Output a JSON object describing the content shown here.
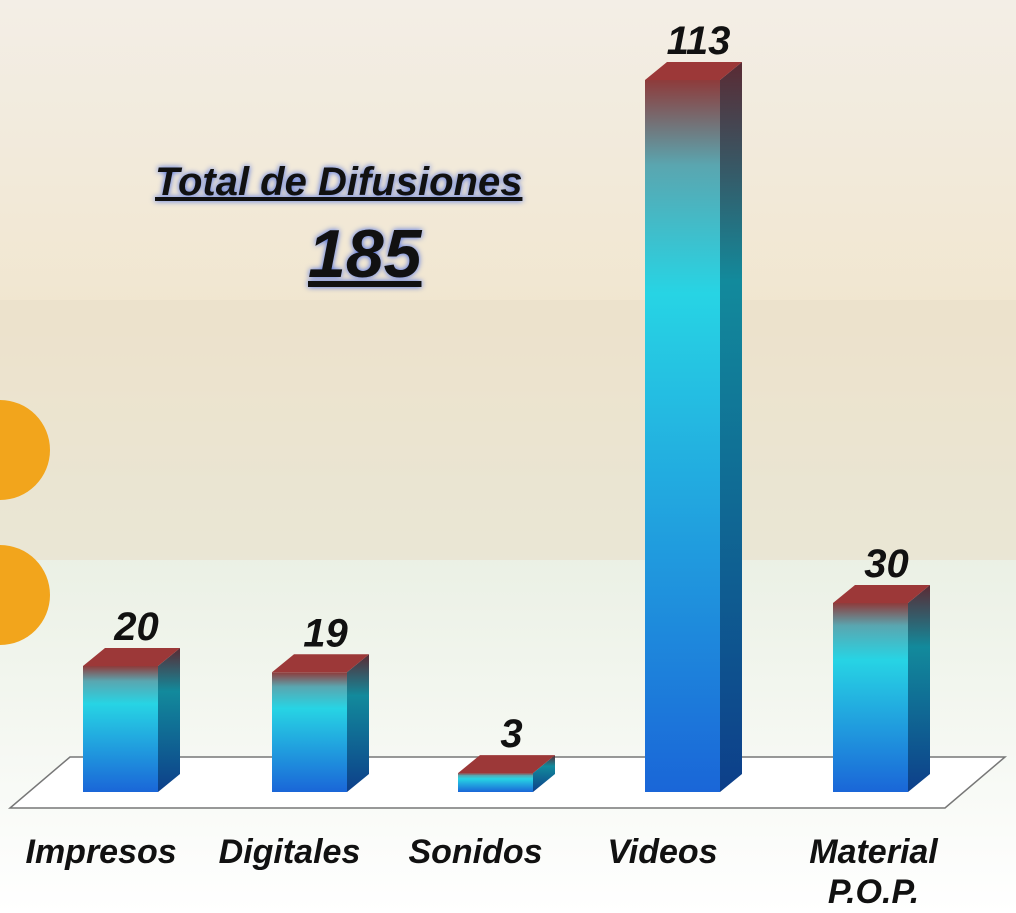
{
  "chart_data": {
    "type": "bar3d",
    "title": "Total de Difusiones",
    "subtitle": "185",
    "categories": [
      "Impresos",
      "Digitales",
      "Sonidos",
      "Videos",
      "Material P.O.P."
    ],
    "values": [
      20,
      19,
      3,
      113,
      30
    ]
  }
}
